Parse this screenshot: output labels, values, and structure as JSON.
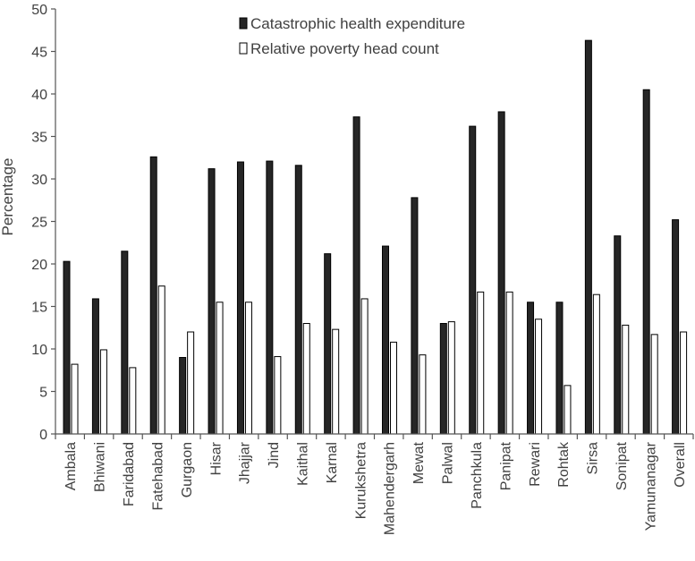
{
  "chart_data": {
    "type": "bar",
    "ylabel": "Percentage",
    "ylim": [
      0,
      50
    ],
    "yticks": [
      "0",
      "5",
      "10",
      "15",
      "20",
      "25",
      "30",
      "35",
      "40",
      "45",
      "50"
    ],
    "legend_position": "top-center",
    "grid": false,
    "categories": [
      "Ambala",
      "Bhiwani",
      "Faridabad",
      "Fatehabad",
      "Gurgaon",
      "Hisar",
      "Jhajjar",
      "Jind",
      "Kaithal",
      "Karnal",
      "Kurukshetra",
      "Mahendergarh",
      "Mewat",
      "Palwal",
      "Panchkula",
      "Panipat",
      "Rewari",
      "Rohtak",
      "Sirsa",
      "Sonipat",
      "Yamunanagar",
      "Overall"
    ],
    "series": [
      {
        "name": "Catastrophic health expenditure",
        "color": "#262626",
        "values": [
          20.3,
          15.9,
          21.5,
          32.6,
          9.0,
          31.2,
          32.0,
          32.1,
          31.6,
          21.2,
          37.3,
          22.1,
          27.8,
          13.0,
          36.2,
          37.9,
          15.5,
          15.5,
          46.3,
          23.3,
          40.5,
          25.2
        ]
      },
      {
        "name": "Relative poverty head count",
        "color": "#ffffff",
        "values": [
          8.2,
          9.9,
          7.8,
          17.4,
          12.0,
          15.5,
          15.5,
          9.1,
          13.0,
          12.3,
          15.9,
          10.8,
          9.3,
          13.2,
          16.7,
          16.7,
          13.5,
          5.7,
          16.4,
          12.8,
          11.7,
          12.0
        ]
      }
    ]
  }
}
